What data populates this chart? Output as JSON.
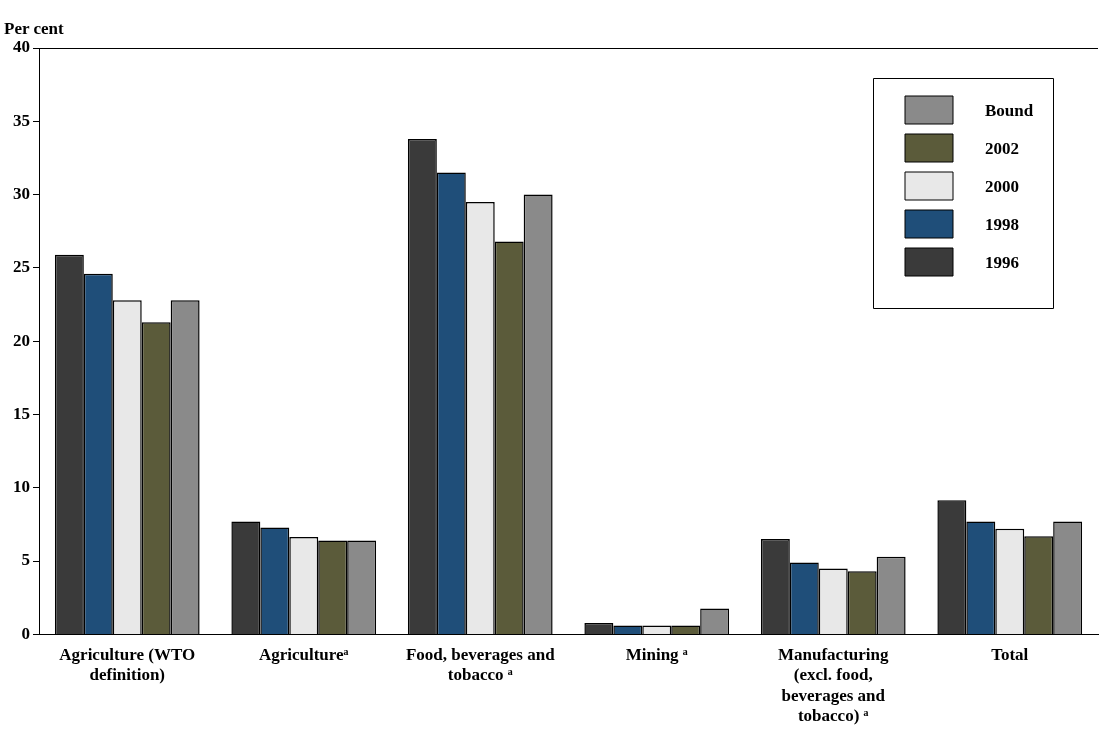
{
  "chart_data": {
    "type": "bar",
    "ylabel": "Per cent",
    "categories": [
      "Agriculture (WTO definition)",
      "Agricultureᵃ",
      "Food, beverages and tobacco ᵃ",
      "Mining ᵃ",
      "Manufacturing (excl. food, beverages and tobacco) ᵃ",
      "Total"
    ],
    "series": [
      {
        "name": "1996",
        "color": "#3a3a3a",
        "values": [
          25.9,
          7.7,
          33.8,
          0.77,
          6.5,
          9.15
        ]
      },
      {
        "name": "1998",
        "color": "#1f4e79",
        "values": [
          24.6,
          7.3,
          31.5,
          0.6,
          4.9,
          7.7
        ]
      },
      {
        "name": "2000",
        "color": "#e8e8e8",
        "values": [
          22.8,
          6.65,
          29.5,
          0.6,
          4.5,
          7.2
        ]
      },
      {
        "name": "2002",
        "color": "#5b5b3a",
        "values": [
          21.3,
          6.4,
          26.8,
          0.6,
          4.3,
          6.7
        ]
      },
      {
        "name": "Bound",
        "color": "#8a8a8a",
        "values": [
          22.8,
          6.4,
          30.0,
          1.77,
          5.3,
          7.7
        ]
      }
    ],
    "ylim": [
      0,
      40
    ],
    "yticks": [
      0,
      5,
      10,
      15,
      20,
      25,
      30,
      35,
      40
    ],
    "grid": false,
    "legend": "top right"
  }
}
